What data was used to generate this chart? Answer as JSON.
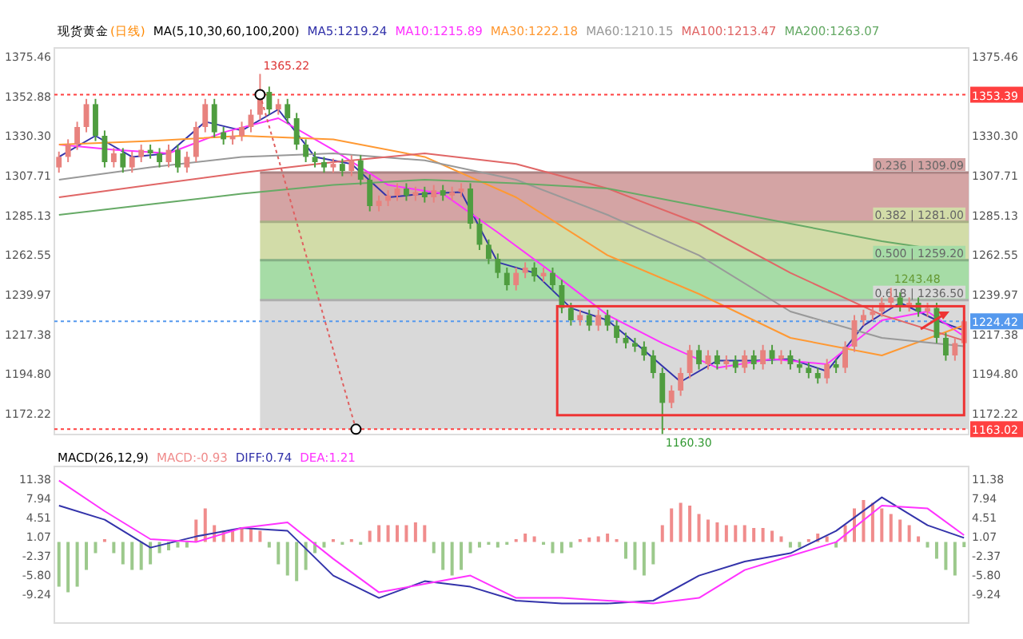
{
  "chart_data": [
    {
      "type": "candlestick",
      "title": "现货黄金",
      "subtitle": "(日线)",
      "legend_title": "MA(5,10,30,60,100,200)",
      "legend": "top",
      "tick_labels": "y",
      "categories": [
        null,
        null,
        null,
        null,
        null,
        null,
        null,
        null,
        null,
        null,
        null,
        null,
        null,
        null,
        null,
        null,
        null,
        null,
        null,
        null,
        null,
        null,
        null,
        null,
        null,
        null,
        null,
        null,
        null,
        null,
        null,
        null,
        null,
        null,
        null,
        null,
        null,
        null,
        null,
        null,
        null,
        null,
        null,
        null,
        null,
        null,
        null,
        null,
        null,
        null,
        null,
        null,
        null,
        null,
        null,
        null,
        null,
        null,
        null,
        null,
        null,
        null,
        null,
        null,
        null,
        null,
        null,
        null,
        null,
        null,
        null,
        null,
        null,
        null,
        null,
        null,
        null,
        null,
        null,
        null,
        null,
        null,
        null,
        null,
        null,
        null,
        null,
        null,
        null,
        null,
        null,
        null,
        null,
        null,
        null,
        null,
        null,
        null,
        null,
        null
      ],
      "ohlc": [
        [
          1312,
          1321,
          1309,
          1318
        ],
        [
          1318,
          1328,
          1315,
          1325
        ],
        [
          1325,
          1338,
          1322,
          1335
        ],
        [
          1335,
          1351,
          1332,
          1348
        ],
        [
          1348,
          1351,
          1327,
          1330
        ],
        [
          1330,
          1333,
          1312,
          1315
        ],
        [
          1315,
          1323,
          1312,
          1320
        ],
        [
          1320,
          1323,
          1309,
          1312
        ],
        [
          1312,
          1321,
          1309,
          1318
        ],
        [
          1318,
          1325,
          1315,
          1322
        ],
        [
          1322,
          1325,
          1317,
          1320
        ],
        [
          1320,
          1323,
          1312,
          1315
        ],
        [
          1315,
          1325,
          1312,
          1322
        ],
        [
          1322,
          1325,
          1309,
          1312
        ],
        [
          1312,
          1321,
          1309,
          1318
        ],
        [
          1318,
          1338,
          1315,
          1335
        ],
        [
          1335,
          1351,
          1332,
          1348
        ],
        [
          1348,
          1351,
          1329,
          1332
        ],
        [
          1332,
          1335,
          1325,
          1328
        ],
        [
          1328,
          1333,
          1325,
          1330
        ],
        [
          1330,
          1338,
          1327,
          1335
        ],
        [
          1335,
          1345,
          1332,
          1342
        ],
        [
          1342,
          1365.22,
          1339,
          1355
        ],
        [
          1355,
          1358,
          1342,
          1345
        ],
        [
          1345,
          1351,
          1342,
          1348
        ],
        [
          1348,
          1351,
          1337,
          1340
        ],
        [
          1340,
          1343,
          1322,
          1325
        ],
        [
          1325,
          1328,
          1315,
          1318
        ],
        [
          1318,
          1321,
          1312,
          1315
        ],
        [
          1315,
          1318,
          1309,
          1312
        ],
        [
          1312,
          1317,
          1309,
          1314
        ],
        [
          1314,
          1317,
          1307,
          1310
        ],
        [
          1310,
          1319,
          1307,
          1316
        ],
        [
          1316,
          1319,
          1302,
          1305
        ],
        [
          1305,
          1308,
          1287,
          1290
        ],
        [
          1290,
          1296,
          1287,
          1293
        ],
        [
          1293,
          1299,
          1290,
          1296
        ],
        [
          1296,
          1303,
          1293,
          1300
        ],
        [
          1300,
          1303,
          1293,
          1296
        ],
        [
          1296,
          1301,
          1293,
          1298
        ],
        [
          1298,
          1301,
          1292,
          1295
        ],
        [
          1295,
          1302,
          1292,
          1299
        ],
        [
          1299,
          1302,
          1293,
          1296
        ],
        [
          1296,
          1301,
          1293,
          1298
        ],
        [
          1298,
          1303,
          1295,
          1300
        ],
        [
          1300,
          1303,
          1277,
          1280
        ],
        [
          1280,
          1283,
          1265,
          1268
        ],
        [
          1268,
          1271,
          1257,
          1260
        ],
        [
          1260,
          1263,
          1249,
          1252
        ],
        [
          1252,
          1255,
          1242,
          1245
        ],
        [
          1245,
          1255,
          1242,
          1252
        ],
        [
          1252,
          1258,
          1249,
          1255
        ],
        [
          1255,
          1258,
          1247,
          1250
        ],
        [
          1250,
          1255,
          1247,
          1252
        ],
        [
          1252,
          1255,
          1242,
          1245
        ],
        [
          1245,
          1248,
          1229,
          1232
        ],
        [
          1232,
          1235,
          1222,
          1225
        ],
        [
          1225,
          1231,
          1222,
          1228
        ],
        [
          1228,
          1231,
          1219,
          1222
        ],
        [
          1222,
          1231,
          1219,
          1228
        ],
        [
          1228,
          1231,
          1219,
          1222
        ],
        [
          1222,
          1225,
          1212,
          1215
        ],
        [
          1215,
          1218,
          1209,
          1212
        ],
        [
          1212,
          1215,
          1207,
          1210
        ],
        [
          1210,
          1213,
          1202,
          1205
        ],
        [
          1205,
          1208,
          1192,
          1195
        ],
        [
          1195,
          1198,
          1160.3,
          1178
        ],
        [
          1178,
          1188,
          1175,
          1185
        ],
        [
          1185,
          1198,
          1182,
          1195
        ],
        [
          1195,
          1211,
          1192,
          1208
        ],
        [
          1208,
          1211,
          1197,
          1200
        ],
        [
          1200,
          1208,
          1197,
          1205
        ],
        [
          1205,
          1208,
          1197,
          1200
        ],
        [
          1200,
          1205,
          1197,
          1202
        ],
        [
          1202,
          1205,
          1195,
          1198
        ],
        [
          1198,
          1208,
          1195,
          1205
        ],
        [
          1205,
          1208,
          1197,
          1200
        ],
        [
          1200,
          1211,
          1197,
          1208
        ],
        [
          1208,
          1211,
          1200,
          1203
        ],
        [
          1203,
          1208,
          1200,
          1205
        ],
        [
          1205,
          1208,
          1197,
          1200
        ],
        [
          1200,
          1203,
          1195,
          1198
        ],
        [
          1198,
          1201,
          1192,
          1195
        ],
        [
          1195,
          1198,
          1189,
          1192
        ],
        [
          1192,
          1203,
          1189,
          1200
        ],
        [
          1200,
          1203,
          1195,
          1198
        ],
        [
          1198,
          1213,
          1195,
          1210
        ],
        [
          1210,
          1228,
          1207,
          1225
        ],
        [
          1225,
          1231,
          1222,
          1228
        ],
        [
          1228,
          1233,
          1225,
          1230
        ],
        [
          1230,
          1238,
          1227,
          1235
        ],
        [
          1235,
          1243.48,
          1232,
          1238
        ],
        [
          1238,
          1241,
          1230,
          1233
        ],
        [
          1233,
          1238,
          1230,
          1235
        ],
        [
          1235,
          1238,
          1227,
          1230
        ],
        [
          1230,
          1235,
          1227,
          1232
        ],
        [
          1232,
          1235,
          1212,
          1215
        ],
        [
          1215,
          1218,
          1202,
          1205
        ],
        [
          1205,
          1215,
          1202,
          1212
        ],
        [
          1212,
          1227,
          1209,
          1224.42
        ]
      ],
      "colors": [
        "#e8827e",
        "#e8827e",
        "#e8827e",
        "#e8827e",
        "#4f9d3f",
        "#4f9d3f",
        "#e8827e",
        "#4f9d3f",
        "#e8827e",
        "#e8827e",
        "#4f9d3f",
        "#4f9d3f",
        "#e8827e",
        "#4f9d3f",
        "#e8827e",
        "#e8827e",
        "#e8827e",
        "#4f9d3f",
        "#4f9d3f",
        "#e8827e",
        "#e8827e",
        "#e8827e",
        "#e8827e",
        "#4f9d3f",
        "#e8827e",
        "#4f9d3f",
        "#4f9d3f",
        "#4f9d3f",
        "#4f9d3f",
        "#4f9d3f",
        "#e8827e",
        "#4f9d3f",
        "#e8827e",
        "#4f9d3f",
        "#4f9d3f",
        "#e8827e",
        "#e8827e",
        "#e8827e",
        "#4f9d3f",
        "#e8827e",
        "#4f9d3f",
        "#e8827e",
        "#4f9d3f",
        "#e8827e",
        "#e8827e",
        "#4f9d3f",
        "#4f9d3f",
        "#4f9d3f",
        "#4f9d3f",
        "#4f9d3f",
        "#e8827e",
        "#e8827e",
        "#4f9d3f",
        "#e8827e",
        "#4f9d3f",
        "#4f9d3f",
        "#4f9d3f",
        "#e8827e",
        "#4f9d3f",
        "#e8827e",
        "#4f9d3f",
        "#4f9d3f",
        "#4f9d3f",
        "#4f9d3f",
        "#4f9d3f",
        "#4f9d3f",
        "#4f9d3f",
        "#e8827e",
        "#e8827e",
        "#e8827e",
        "#4f9d3f",
        "#e8827e",
        "#4f9d3f",
        "#e8827e",
        "#4f9d3f",
        "#e8827e",
        "#4f9d3f",
        "#e8827e",
        "#4f9d3f",
        "#e8827e",
        "#4f9d3f",
        "#4f9d3f",
        "#4f9d3f",
        "#4f9d3f",
        "#e8827e",
        "#4f9d3f",
        "#e8827e",
        "#e8827e",
        "#e8827e",
        "#e8827e",
        "#e8827e",
        "#e8827e",
        "#4f9d3f",
        "#e8827e",
        "#4f9d3f",
        "#e8827e",
        "#4f9d3f",
        "#4f9d3f",
        "#e8827e",
        "#e8827e"
      ],
      "series": [
        {
          "type": "line",
          "name": "MA5:1219.24",
          "color": "#3333aa",
          "values": [
            1318,
            null,
            null,
            null,
            1330,
            null,
            null,
            null,
            1318,
            null,
            null,
            null,
            1320,
            null,
            null,
            null,
            1338,
            null,
            null,
            null,
            1333,
            null,
            null,
            null,
            1345,
            null,
            null,
            null,
            1318,
            null,
            null,
            null,
            1314,
            null,
            null,
            null,
            1295,
            null,
            null,
            null,
            1297,
            null,
            null,
            null,
            1298,
            null,
            null,
            null,
            1258,
            null,
            null,
            null,
            1252,
            null,
            null,
            null,
            1232,
            null,
            null,
            null,
            1225,
            null,
            null,
            null,
            1208,
            null,
            null,
            null,
            1190,
            null,
            null,
            null,
            1202,
            null,
            null,
            null,
            1202,
            null,
            null,
            null,
            1203,
            null,
            null,
            null,
            1196,
            null,
            null,
            null,
            1222,
            null,
            null,
            null,
            1235,
            null,
            null,
            null,
            1225,
            null,
            null,
            1219.24
          ]
        },
        {
          "type": "line",
          "name": "MA10:1215.89",
          "color": "#ff33ff",
          "values": [
            1325,
            null,
            null,
            null,
            null,
            null,
            1322,
            null,
            null,
            null,
            null,
            null,
            1320,
            null,
            null,
            null,
            null,
            null,
            1332,
            null,
            null,
            null,
            null,
            null,
            1340,
            null,
            null,
            null,
            null,
            null,
            1322,
            null,
            null,
            null,
            null,
            null,
            1302,
            null,
            null,
            null,
            null,
            null,
            1297,
            null,
            null,
            null,
            null,
            null,
            1275,
            null,
            null,
            null,
            null,
            null,
            1252,
            null,
            null,
            null,
            null,
            null,
            1228,
            null,
            null,
            null,
            null,
            null,
            1212,
            null,
            null,
            null,
            null,
            null,
            1198,
            null,
            null,
            null,
            null,
            null,
            1203,
            null,
            null,
            null,
            null,
            null,
            1200,
            null,
            null,
            null,
            null,
            null,
            1225,
            null,
            null,
            null,
            null,
            1230,
            null,
            null,
            null,
            1215.89
          ]
        },
        {
          "type": "line",
          "name": "MA30:1222.18",
          "color": "#ff9933",
          "values": [
            1325,
            null,
            null,
            null,
            null,
            null,
            null,
            null,
            null,
            null,
            1327,
            null,
            null,
            null,
            null,
            null,
            null,
            null,
            null,
            null,
            1330,
            null,
            null,
            null,
            null,
            null,
            null,
            null,
            null,
            null,
            1328,
            null,
            null,
            null,
            null,
            null,
            null,
            null,
            null,
            null,
            1318,
            null,
            null,
            null,
            null,
            null,
            null,
            null,
            null,
            null,
            1295,
            null,
            null,
            null,
            null,
            null,
            null,
            null,
            null,
            null,
            1262,
            null,
            null,
            null,
            null,
            null,
            null,
            null,
            null,
            null,
            1240,
            null,
            null,
            null,
            null,
            null,
            null,
            null,
            null,
            null,
            1215,
            null,
            null,
            null,
            null,
            null,
            null,
            null,
            null,
            null,
            1205,
            null,
            null,
            null,
            null,
            null,
            null,
            null,
            null,
            1222.18
          ]
        },
        {
          "type": "line",
          "name": "MA60:1210.15",
          "color": "#999999",
          "values": [
            1305,
            null,
            null,
            null,
            null,
            null,
            null,
            null,
            null,
            null,
            1312,
            null,
            null,
            null,
            null,
            null,
            null,
            null,
            null,
            null,
            1318,
            null,
            null,
            null,
            null,
            null,
            null,
            null,
            null,
            null,
            1320,
            null,
            null,
            null,
            null,
            null,
            null,
            null,
            null,
            null,
            1316,
            null,
            null,
            null,
            null,
            null,
            null,
            null,
            null,
            null,
            1305,
            null,
            null,
            null,
            null,
            null,
            null,
            null,
            null,
            null,
            1285,
            null,
            null,
            null,
            null,
            null,
            null,
            null,
            null,
            null,
            1262,
            null,
            null,
            null,
            null,
            null,
            null,
            null,
            null,
            null,
            1230,
            null,
            null,
            null,
            null,
            null,
            null,
            null,
            null,
            null,
            1215,
            null,
            null,
            null,
            null,
            null,
            null,
            null,
            null,
            1210.15
          ]
        },
        {
          "type": "line",
          "name": "MA100:1213.47",
          "color": "#e06666",
          "values": [
            1295,
            null,
            null,
            null,
            null,
            null,
            null,
            null,
            null,
            null,
            1302,
            null,
            null,
            null,
            null,
            null,
            null,
            null,
            null,
            null,
            1309,
            null,
            null,
            null,
            null,
            null,
            null,
            null,
            null,
            null,
            1315,
            null,
            null,
            null,
            null,
            null,
            null,
            null,
            null,
            null,
            1320,
            null,
            null,
            null,
            null,
            null,
            null,
            null,
            null,
            null,
            1314,
            null,
            null,
            null,
            null,
            null,
            null,
            null,
            null,
            null,
            1300,
            null,
            null,
            null,
            null,
            null,
            null,
            null,
            null,
            null,
            1280,
            null,
            null,
            null,
            null,
            null,
            null,
            null,
            null,
            null,
            1252,
            null,
            null,
            null,
            null,
            null,
            null,
            null,
            null,
            null,
            1228,
            null,
            null,
            null,
            null,
            null,
            null,
            null,
            null,
            1213.47
          ]
        },
        {
          "type": "line",
          "name": "MA200:1263.07",
          "color": "#66aa66",
          "values": [
            1285,
            null,
            null,
            null,
            null,
            null,
            null,
            null,
            null,
            null,
            1291,
            null,
            null,
            null,
            null,
            null,
            null,
            null,
            null,
            null,
            1297,
            null,
            null,
            null,
            null,
            null,
            null,
            null,
            null,
            null,
            1302,
            null,
            null,
            null,
            null,
            null,
            null,
            null,
            null,
            null,
            1305,
            null,
            null,
            null,
            null,
            null,
            null,
            null,
            null,
            null,
            1303,
            null,
            null,
            null,
            null,
            null,
            null,
            null,
            null,
            null,
            1300,
            null,
            null,
            null,
            null,
            null,
            null,
            null,
            null,
            null,
            1290,
            null,
            null,
            null,
            null,
            null,
            null,
            null,
            null,
            null,
            1280,
            null,
            null,
            null,
            null,
            null,
            null,
            null,
            null,
            null,
            1270,
            null,
            null,
            null,
            null,
            null,
            null,
            null,
            null,
            1263.07
          ]
        }
      ],
      "ylim": [
        1160,
        1380
      ],
      "yticks": [
        1375.46,
        1352.88,
        {
          "value": 1330.3,
          "label": "1330.30"
        },
        1307.71,
        1285.13,
        1262.55,
        1239.97,
        1217.38,
        {
          "value": 1194.8,
          "label": "1194.80"
        },
        1172.22
      ],
      "y2lim": [
        1160,
        1380
      ],
      "y2ticks": [
        1375.46,
        {
          "value": 1330.3,
          "label": "1330.30"
        },
        1307.71,
        1285.13,
        1262.55,
        1239.97,
        1217.38,
        {
          "value": 1194.8,
          "label": "1194.80"
        },
        1172.22
      ],
      "bands": [
        {
          "axis": "y2",
          "from": 1309.09,
          "to": 1281,
          "label": "0.236 | 1309.09",
          "color": "#d4a4a4"
        },
        {
          "axis": "y2",
          "from": 1281,
          "to": 1259.2,
          "label": "0.382 | 1281.00",
          "color": "#d2dca8"
        },
        {
          "axis": "y2",
          "from": 1259.2,
          "to": 1236.5,
          "label": "0.500 | 1259.20",
          "color": "#a6dca6"
        },
        {
          "axis": "y2",
          "from": 1236.5,
          "to": 1163.02,
          "label": "0.618 | 1236.50",
          "color": "#d9d9d9"
        }
      ],
      "ref_lines": [
        {
          "axis": "y2",
          "value": 1353.39,
          "label": "1353.39",
          "color": "#ff4040",
          "line_style": "dotted"
        },
        {
          "axis": "y2",
          "value": 1163.02,
          "label": "1163.02",
          "color": "#ff4040",
          "line_style": "dotted"
        },
        {
          "axis": "y2",
          "value": 1224.42,
          "label": "1224.42",
          "color": "#5599ee",
          "line_style": "dotted"
        }
      ],
      "annotations": [
        "1365.22",
        {
          "text": "1160.30",
          "y": 1160.3
        },
        "1243.48"
      ]
    },
    {
      "type": "bar",
      "title": "MACD(26,12,9)",
      "legend": "top left",
      "tick_labels": "y",
      "categories": [
        null,
        null,
        null,
        null,
        null,
        null,
        null,
        null,
        null,
        null,
        null,
        null,
        null,
        null,
        null,
        null,
        null,
        null,
        null,
        null,
        null,
        null,
        null,
        null,
        null,
        null,
        null,
        null,
        null,
        null,
        null,
        null,
        null,
        null,
        null,
        null,
        null,
        null,
        null,
        null,
        null,
        null,
        null,
        null,
        null,
        null,
        null,
        null,
        null,
        null,
        null,
        null,
        null,
        null,
        null,
        null,
        null,
        null,
        null,
        null,
        null,
        null,
        null,
        null,
        null,
        null,
        null,
        null,
        null,
        null,
        null,
        null,
        null,
        null,
        null,
        null,
        null,
        null,
        null,
        null,
        null,
        null,
        null,
        null,
        null,
        null,
        null,
        null,
        null,
        null,
        null,
        null,
        null,
        null,
        null,
        null,
        null,
        null,
        null,
        null
      ],
      "series": [
        {
          "type": "bar",
          "name": "MACD:-0.93",
          "color": "#f08c8c",
          "values": [
            -8,
            -9,
            -8,
            -5,
            -2,
            0.5,
            -2,
            -4,
            -5,
            -5,
            -4,
            -2,
            -1.5,
            -1,
            -1,
            4,
            6,
            3,
            2,
            2,
            2.5,
            2.5,
            2,
            -1,
            -4,
            -6,
            -7,
            -5,
            -2,
            -1,
            0.5,
            -0.5,
            0.5,
            -0.5,
            2,
            3,
            3,
            3,
            3,
            3.5,
            3,
            -2,
            -5,
            -6,
            -5,
            -2,
            -1,
            -0.5,
            -1,
            -0.5,
            0.5,
            1.5,
            1,
            -0.5,
            -2,
            -2,
            -1,
            0.5,
            0.8,
            1,
            1.5,
            0.5,
            -3,
            -5,
            -6,
            -4,
            3,
            6,
            7,
            6.5,
            5,
            4,
            3.5,
            3,
            3,
            3,
            2.5,
            2.5,
            2,
            1,
            -1,
            -1,
            0.5,
            1.5,
            1,
            -1,
            3,
            6,
            7.5,
            7,
            6,
            5,
            4,
            3,
            1,
            -1,
            -3,
            -5,
            -6,
            -0.93
          ],
          "colors": [
            "#9cc98c",
            "#9cc98c",
            "#9cc98c",
            "#9cc98c",
            "#9cc98c",
            "#f08c8c",
            "#9cc98c",
            "#9cc98c",
            "#9cc98c",
            "#9cc98c",
            "#9cc98c",
            "#9cc98c",
            "#9cc98c",
            "#9cc98c",
            "#9cc98c",
            "#f08c8c",
            "#f08c8c",
            "#f08c8c",
            "#f08c8c",
            "#f08c8c",
            "#f08c8c",
            "#f08c8c",
            "#f08c8c",
            "#9cc98c",
            "#9cc98c",
            "#9cc98c",
            "#9cc98c",
            "#9cc98c",
            "#9cc98c",
            "#9cc98c",
            "#f08c8c",
            "#9cc98c",
            "#f08c8c",
            "#9cc98c",
            "#f08c8c",
            "#f08c8c",
            "#f08c8c",
            "#f08c8c",
            "#f08c8c",
            "#f08c8c",
            "#f08c8c",
            "#9cc98c",
            "#9cc98c",
            "#9cc98c",
            "#9cc98c",
            "#9cc98c",
            "#9cc98c",
            "#9cc98c",
            "#9cc98c",
            "#9cc98c",
            "#f08c8c",
            "#f08c8c",
            "#f08c8c",
            "#9cc98c",
            "#9cc98c",
            "#9cc98c",
            "#9cc98c",
            "#f08c8c",
            "#f08c8c",
            "#f08c8c",
            "#f08c8c",
            "#f08c8c",
            "#9cc98c",
            "#9cc98c",
            "#9cc98c",
            "#9cc98c",
            "#f08c8c",
            "#f08c8c",
            "#f08c8c",
            "#f08c8c",
            "#f08c8c",
            "#f08c8c",
            "#f08c8c",
            "#f08c8c",
            "#f08c8c",
            "#f08c8c",
            "#f08c8c",
            "#f08c8c",
            "#f08c8c",
            "#f08c8c",
            "#9cc98c",
            "#9cc98c",
            "#f08c8c",
            "#f08c8c",
            "#f08c8c",
            "#9cc98c",
            "#f08c8c",
            "#f08c8c",
            "#f08c8c",
            "#f08c8c",
            "#f08c8c",
            "#f08c8c",
            "#f08c8c",
            "#f08c8c",
            "#f08c8c",
            "#9cc98c",
            "#9cc98c",
            "#9cc98c",
            "#9cc98c",
            "#9cc98c"
          ]
        },
        {
          "type": "line",
          "name": "DIFF:0.74",
          "color": "#3333aa",
          "values": [
            6.5,
            null,
            null,
            null,
            null,
            4,
            null,
            null,
            null,
            null,
            -1,
            null,
            null,
            null,
            null,
            1,
            null,
            null,
            null,
            null,
            2.5,
            null,
            null,
            null,
            null,
            2,
            null,
            null,
            null,
            null,
            -6,
            null,
            null,
            null,
            null,
            -10,
            null,
            null,
            null,
            null,
            -7,
            null,
            null,
            null,
            null,
            -8,
            null,
            null,
            null,
            null,
            -10.5,
            null,
            null,
            null,
            null,
            -11,
            null,
            null,
            null,
            null,
            -11,
            null,
            null,
            null,
            null,
            -10.5,
            null,
            null,
            null,
            null,
            -6,
            null,
            null,
            null,
            null,
            -3.5,
            null,
            null,
            null,
            null,
            -2,
            null,
            null,
            null,
            null,
            2,
            null,
            null,
            null,
            null,
            8,
            null,
            null,
            null,
            null,
            3,
            null,
            null,
            null,
            0.74
          ]
        },
        {
          "type": "line",
          "name": "DEA:1.21",
          "color": "#ff33ff",
          "values": [
            11,
            null,
            null,
            null,
            null,
            5.5,
            null,
            null,
            null,
            null,
            0.5,
            null,
            null,
            null,
            null,
            0,
            null,
            null,
            null,
            null,
            2.5,
            null,
            null,
            null,
            null,
            3.5,
            null,
            null,
            null,
            null,
            -3,
            null,
            null,
            null,
            null,
            -9,
            null,
            null,
            null,
            null,
            -7.5,
            null,
            null,
            null,
            null,
            -6,
            null,
            null,
            null,
            null,
            -10,
            null,
            null,
            null,
            null,
            -10,
            null,
            null,
            null,
            null,
            -10.5,
            null,
            null,
            null,
            null,
            -11,
            null,
            null,
            null,
            null,
            -10,
            null,
            null,
            null,
            null,
            -5,
            null,
            null,
            null,
            null,
            -2.5,
            null,
            null,
            null,
            null,
            0,
            null,
            null,
            null,
            null,
            6.5,
            null,
            null,
            null,
            null,
            6,
            null,
            null,
            null,
            1.21
          ]
        }
      ],
      "ylim": [
        -14.5,
        13.5
      ],
      "yticks": [
        11.38,
        7.94,
        4.51,
        1.07,
        -2.37,
        {
          "value": -5.8,
          "label": "-5.80"
        },
        -9.24
      ],
      "y2lim": [
        -14.5,
        13.5
      ],
      "y2ticks": [
        11.38,
        7.94,
        4.51,
        1.07,
        -2.37,
        {
          "value": -5.8,
          "label": "-5.80"
        },
        -9.24
      ]
    }
  ]
}
